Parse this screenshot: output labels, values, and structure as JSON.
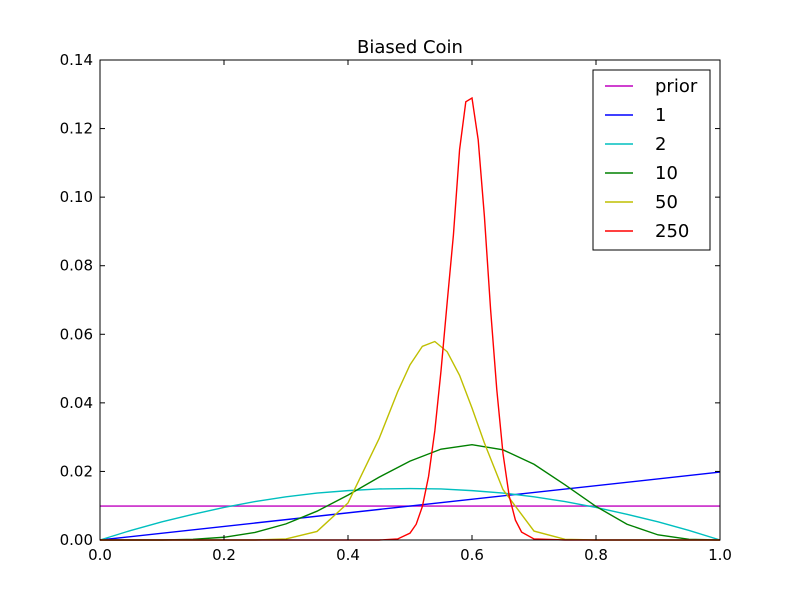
{
  "chart_data": {
    "type": "line",
    "title": "Biased Coin",
    "xlabel": "",
    "ylabel": "",
    "xlim": [
      0.0,
      1.0
    ],
    "ylim": [
      0.0,
      0.14
    ],
    "xticks": [
      "0.0",
      "0.2",
      "0.4",
      "0.6",
      "0.8",
      "1.0"
    ],
    "yticks": [
      "0.00",
      "0.02",
      "0.04",
      "0.06",
      "0.08",
      "0.10",
      "0.12",
      "0.14"
    ],
    "grid": false,
    "legend_position": "top-right",
    "series": [
      {
        "name": "prior",
        "color": "#bf00bf",
        "x": [
          0.0,
          1.0
        ],
        "y": [
          0.0099,
          0.0099
        ]
      },
      {
        "name": "1",
        "color": "#0000ff",
        "x": [
          0.0,
          1.0
        ],
        "y": [
          0.0,
          0.0198
        ]
      },
      {
        "name": "2",
        "color": "#00bfbf",
        "x": [
          0.0,
          0.05,
          0.1,
          0.15,
          0.2,
          0.25,
          0.3,
          0.35,
          0.4,
          0.45,
          0.5,
          0.55,
          0.6,
          0.65,
          0.7,
          0.75,
          0.8,
          0.85,
          0.9,
          0.95,
          1.0
        ],
        "y": [
          0.0,
          0.0028,
          0.0053,
          0.0075,
          0.0095,
          0.0112,
          0.0126,
          0.0137,
          0.0144,
          0.0149,
          0.015,
          0.0149,
          0.0144,
          0.0137,
          0.0126,
          0.0112,
          0.0095,
          0.0075,
          0.0053,
          0.0028,
          0.0
        ]
      },
      {
        "name": "10",
        "color": "#008000",
        "x": [
          0.0,
          0.1,
          0.15,
          0.2,
          0.25,
          0.3,
          0.35,
          0.4,
          0.45,
          0.5,
          0.55,
          0.6,
          0.65,
          0.7,
          0.75,
          0.8,
          0.85,
          0.9,
          0.95,
          1.0
        ],
        "y": [
          0.0,
          0.0,
          0.0002,
          0.0008,
          0.0022,
          0.0047,
          0.0084,
          0.0131,
          0.0183,
          0.023,
          0.0265,
          0.0278,
          0.0263,
          0.0221,
          0.0161,
          0.0098,
          0.0046,
          0.0015,
          0.0002,
          0.0
        ]
      },
      {
        "name": "50",
        "color": "#bfbf00",
        "x": [
          0.0,
          0.25,
          0.3,
          0.35,
          0.4,
          0.45,
          0.48,
          0.5,
          0.52,
          0.54,
          0.56,
          0.58,
          0.6,
          0.62,
          0.65,
          0.7,
          0.75,
          0.8,
          1.0
        ],
        "y": [
          0.0,
          0.0,
          0.0003,
          0.0025,
          0.0108,
          0.0295,
          0.0432,
          0.0511,
          0.0565,
          0.0579,
          0.0549,
          0.048,
          0.0385,
          0.0283,
          0.0147,
          0.0026,
          0.0002,
          0.0,
          0.0
        ]
      },
      {
        "name": "250",
        "color": "#ff0000",
        "x": [
          0.0,
          0.45,
          0.48,
          0.5,
          0.51,
          0.52,
          0.53,
          0.54,
          0.55,
          0.56,
          0.57,
          0.58,
          0.59,
          0.6,
          0.61,
          0.62,
          0.63,
          0.64,
          0.65,
          0.66,
          0.67,
          0.68,
          0.7,
          0.75,
          1.0
        ],
        "y": [
          0.0,
          0.0,
          0.0003,
          0.002,
          0.0046,
          0.0098,
          0.0186,
          0.0318,
          0.0493,
          0.0694,
          0.0889,
          0.1139,
          0.1278,
          0.1289,
          0.1167,
          0.0944,
          0.0672,
          0.0438,
          0.0252,
          0.0128,
          0.0058,
          0.0023,
          0.0003,
          0.0,
          0.0
        ]
      }
    ]
  }
}
